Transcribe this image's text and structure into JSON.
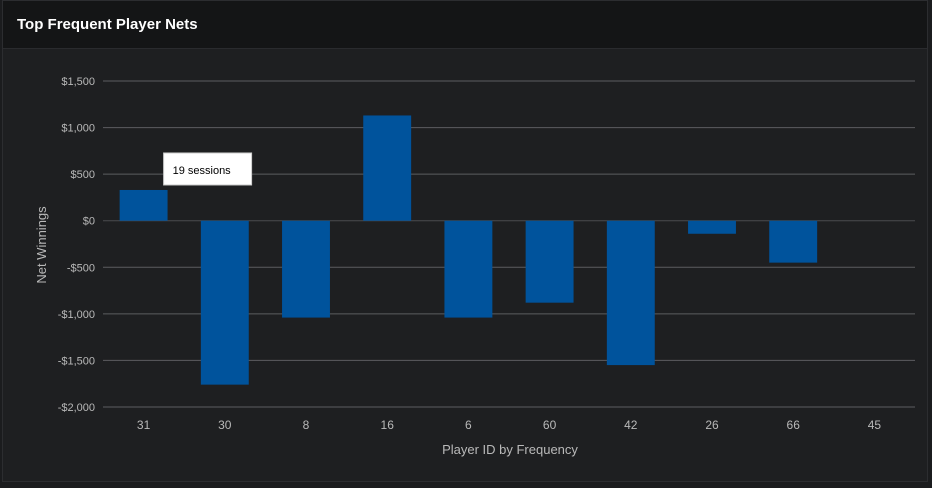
{
  "panel": {
    "title": "Top Frequent Player Nets"
  },
  "chart_data": {
    "type": "bar",
    "title": "Top Frequent Player Nets",
    "xlabel": "Player ID by Frequency",
    "ylabel": "Net Winnings",
    "categories": [
      "31",
      "30",
      "8",
      "16",
      "6",
      "60",
      "42",
      "26",
      "66",
      "45"
    ],
    "values": [
      330,
      -1760,
      -1040,
      1130,
      -1040,
      -880,
      -1550,
      -140,
      -450,
      0
    ],
    "ylim": [
      -2000,
      1500
    ],
    "yticks": [
      1500,
      1000,
      500,
      0,
      -500,
      -1000,
      -1500,
      -2000
    ],
    "ytick_labels": [
      "$1,500",
      "$1,000",
      "$500",
      "$0",
      "-$500",
      "-$1,000",
      "-$1,500",
      "-$2,000"
    ],
    "grid": true,
    "bar_color": "#00539c",
    "tooltip": {
      "text": "19 sessions",
      "category": "31"
    }
  }
}
